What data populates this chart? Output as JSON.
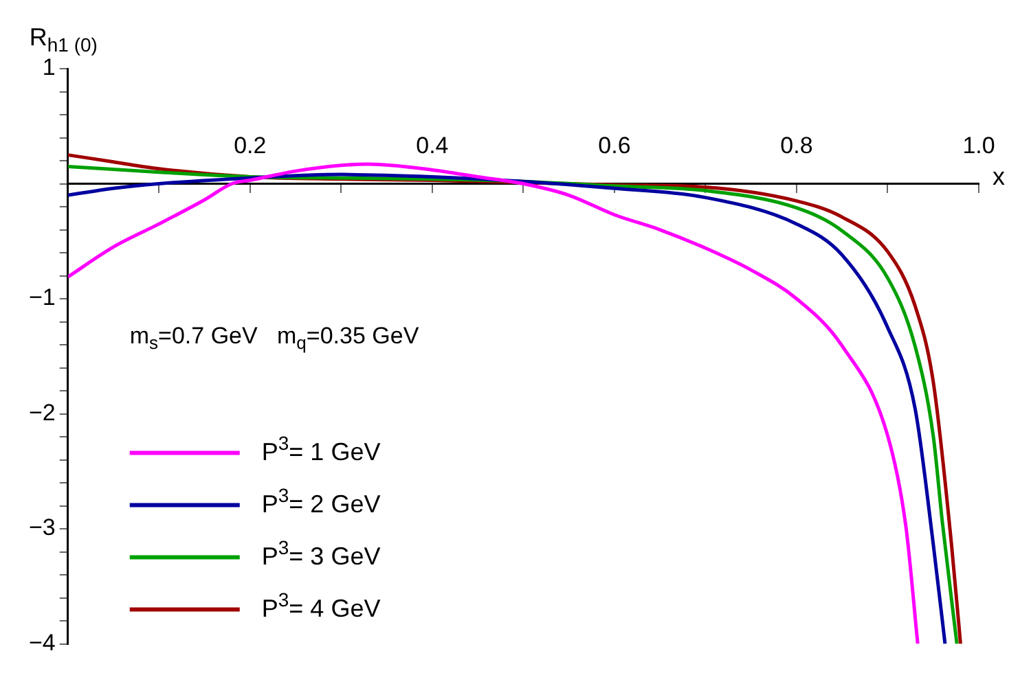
{
  "chart_data": {
    "type": "line",
    "xlabel": "x",
    "ylabel": "R$_{h1 (0)}$",
    "annotations": [
      "m$_{s}$=0.7 GeV   m$_{q}$=0.35 GeV"
    ],
    "xlim": [
      0,
      1
    ],
    "ylim": [
      -4,
      1
    ],
    "xticks": [
      {
        "value": 0.1,
        "label": null
      },
      0.2,
      {
        "value": 0.3,
        "label": null
      },
      0.4,
      {
        "value": 0.5,
        "label": null
      },
      0.6,
      {
        "value": 0.7,
        "label": null
      },
      0.8,
      {
        "value": 0.9,
        "label": null
      },
      {
        "value": 1,
        "label": "1.0"
      }
    ],
    "yticks": [
      1,
      {
        "value": 0.8,
        "label": null
      },
      {
        "value": 0.6,
        "label": null
      },
      {
        "value": 0.4,
        "label": null
      },
      {
        "value": 0.2,
        "label": null
      },
      {
        "value": 0,
        "label": null
      },
      {
        "value": -0.2,
        "label": null
      },
      {
        "value": -0.4,
        "label": null
      },
      {
        "value": -0.6,
        "label": null
      },
      {
        "value": -0.8,
        "label": null
      },
      -1,
      {
        "value": -1.2,
        "label": null
      },
      {
        "value": -1.4,
        "label": null
      },
      {
        "value": -1.6,
        "label": null
      },
      {
        "value": -1.8,
        "label": null
      },
      -2,
      {
        "value": -2.2,
        "label": null
      },
      {
        "value": -2.4,
        "label": null
      },
      {
        "value": -2.6,
        "label": null
      },
      {
        "value": -2.8,
        "label": null
      },
      -3,
      {
        "value": -3.2,
        "label": null
      },
      {
        "value": -3.4,
        "label": null
      },
      {
        "value": -3.6,
        "label": null
      },
      {
        "value": -3.8,
        "label": null
      },
      -4
    ],
    "grid": false,
    "legend": "bottom left",
    "marker": "none",
    "line_style": "solid",
    "series": [
      {
        "name": "P$^{3}$= 1 GeV",
        "color": "#ff00ff",
        "x": [
          0,
          0.05,
          0.1,
          0.15,
          0.18,
          0.2,
          0.25,
          0.3,
          0.33,
          0.4,
          0.45,
          0.5,
          0.55,
          0.6,
          0.65,
          0.7,
          0.75,
          0.8,
          0.85,
          0.9,
          0.92,
          0.933
        ],
        "values": [
          -0.81,
          -0.55,
          -0.35,
          -0.14,
          0,
          0.03,
          0.11,
          0.16,
          0.17,
          0.12,
          0.06,
          0,
          -0.1,
          -0.27,
          -0.4,
          -0.56,
          -0.75,
          -1.0,
          -1.41,
          -2.19,
          -2.98,
          -4
        ]
      },
      {
        "name": "P$^{3}$= 2 GeV",
        "color": "#0000a0",
        "x": [
          0,
          0.05,
          0.1,
          0.2,
          0.3,
          0.4,
          0.5,
          0.6,
          0.7,
          0.8,
          0.85,
          0.9,
          0.93,
          0.95,
          0.963
        ],
        "values": [
          -0.1,
          -0.04,
          0,
          0.05,
          0.08,
          0.06,
          0.02,
          -0.04,
          -0.12,
          -0.35,
          -0.62,
          -1.25,
          -1.95,
          -3.13,
          -4
        ]
      },
      {
        "name": "P$^{3}$= 3 GeV",
        "color": "#00a000",
        "x": [
          0,
          0.1,
          0.2,
          0.3,
          0.4,
          0.5,
          0.6,
          0.7,
          0.8,
          0.85,
          0.9,
          0.93,
          0.95,
          0.96,
          0.976
        ],
        "values": [
          0.15,
          0.1,
          0.06,
          0.05,
          0.04,
          0.02,
          -0.02,
          -0.06,
          -0.21,
          -0.41,
          -0.82,
          -1.41,
          -2.19,
          -2.94,
          -4
        ]
      },
      {
        "name": "P$^{3}$= 4 GeV",
        "color": "#a00000",
        "x": [
          0,
          0.05,
          0.1,
          0.2,
          0.3,
          0.4,
          0.5,
          0.6,
          0.7,
          0.8,
          0.85,
          0.9,
          0.93,
          0.95,
          0.97,
          0.98
        ],
        "values": [
          0.25,
          0.19,
          0.13,
          0.06,
          0.04,
          0.03,
          0.01,
          -0.01,
          -0.03,
          -0.15,
          -0.29,
          -0.59,
          -1.06,
          -1.72,
          -3.13,
          -4
        ]
      }
    ]
  }
}
